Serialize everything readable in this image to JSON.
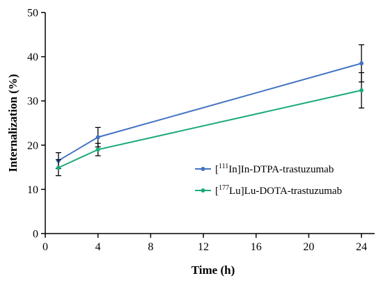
{
  "chart_data": {
    "type": "line",
    "title": "",
    "xlabel": "Time (h)",
    "ylabel": "Internalization (%)",
    "xlim": [
      0,
      25
    ],
    "ylim": [
      0,
      50
    ],
    "xticks": [
      0,
      4,
      8,
      12,
      16,
      20,
      24
    ],
    "yticks": [
      0,
      10,
      20,
      30,
      40,
      50
    ],
    "grid": false,
    "legend_position": "center-right",
    "series": [
      {
        "name_prefix": "[",
        "name_sup": "111",
        "name_suffix": "In]In-DTPA-trastuzumab",
        "color": "#4472C4",
        "x": [
          1,
          4,
          24
        ],
        "y": [
          16.5,
          21.8,
          38.5
        ],
        "error": [
          1.8,
          2.2,
          4.2
        ]
      },
      {
        "name_prefix": "[",
        "name_sup": "177",
        "name_suffix": "Lu]Lu-DOTA-trastuzumab",
        "color": "#1AAA7A",
        "x": [
          1,
          4,
          24
        ],
        "y": [
          14.9,
          19.0,
          32.4
        ],
        "error": [
          1.8,
          1.4,
          4.0
        ]
      }
    ]
  }
}
